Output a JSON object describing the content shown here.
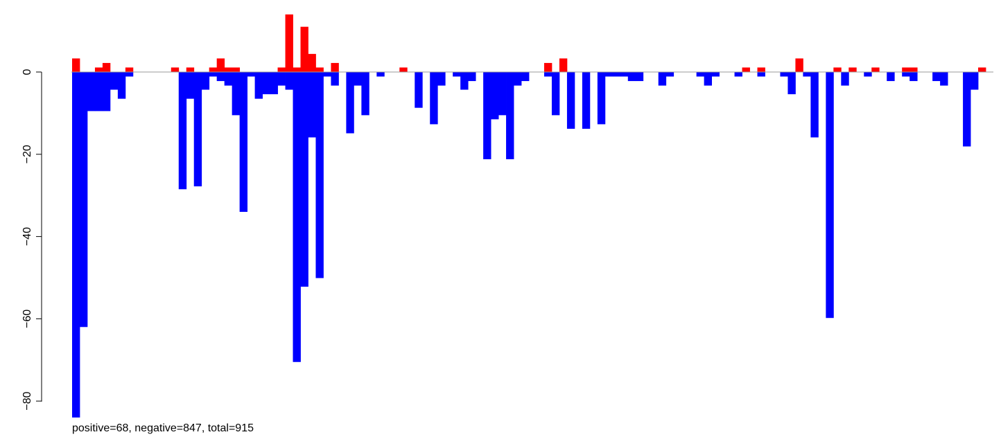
{
  "chart_data": {
    "type": "bar",
    "title": "",
    "xlabel": "",
    "ylabel": "",
    "ylim": [
      -84,
      14
    ],
    "yticks": [
      0,
      -20,
      -40,
      -60,
      -80
    ],
    "ytick_labels": [
      "0",
      "−20",
      "−40",
      "−60",
      "−80"
    ],
    "grid": false,
    "legend": "none",
    "colors": {
      "positive": "#ff0000",
      "negative": "#0000ff",
      "zero_line": "#999999"
    },
    "series": [
      {
        "values": [
          3.3,
          0,
          0,
          1.1,
          2.2,
          0,
          0,
          1.1,
          0,
          0,
          0,
          0,
          0,
          1.1,
          0,
          1.1,
          0,
          0,
          1.1,
          3.3,
          1.1,
          1.1,
          0,
          0,
          0,
          0,
          0,
          1.1,
          14,
          1.1,
          11,
          4.4,
          1.1,
          0,
          2.2,
          0,
          0,
          0,
          0,
          0,
          0,
          0,
          0,
          1.1,
          0,
          0,
          0,
          0,
          0,
          0,
          0,
          0,
          0,
          0,
          0,
          0,
          0,
          0,
          0,
          0,
          0,
          0,
          2.2,
          0,
          3.3,
          0,
          0,
          0,
          0,
          0,
          0,
          0,
          0,
          0,
          0,
          0,
          0,
          0,
          0,
          0,
          0,
          0,
          0,
          0,
          0,
          0,
          0,
          0,
          1.1,
          0,
          1.1,
          0,
          0,
          0,
          0,
          3.3,
          0,
          0,
          0,
          0,
          1.1,
          0,
          1.1,
          0,
          0,
          1.1,
          0,
          0,
          0,
          1.1,
          1.1,
          0,
          0,
          0,
          0,
          0,
          0,
          0,
          0,
          1.1,
          0
        ]
      },
      {
        "values": [
          -84,
          -62,
          -9.5,
          -9.5,
          -9.5,
          -4.3,
          -6.5,
          -1.1,
          0,
          0,
          0,
          0,
          0,
          0,
          -28.5,
          -6.5,
          -27.8,
          -4.3,
          -1.1,
          -2.2,
          -3.3,
          -10.5,
          -34,
          -1.1,
          -6.5,
          -5.4,
          -5.4,
          -3.3,
          -4.3,
          -70.5,
          -52.2,
          -15.9,
          -50.1,
          -1.1,
          -3.3,
          0,
          -14.9,
          -3.3,
          -10.5,
          0,
          -1.1,
          0,
          0,
          0,
          0,
          -8.7,
          0,
          -12.7,
          -3.3,
          0,
          -1.1,
          -4.3,
          -2.2,
          0,
          -21.2,
          -11.5,
          -10.5,
          -21.2,
          -3.3,
          -2.2,
          0,
          0,
          -1.1,
          -10.5,
          0,
          -13.8,
          0,
          -13.8,
          0,
          -12.7,
          -1.1,
          -1.1,
          -1.1,
          -2.2,
          -2.2,
          0,
          0,
          -3.3,
          -1.1,
          0,
          0,
          0,
          -1.1,
          -3.3,
          -1.1,
          0,
          0,
          -1.1,
          0,
          0,
          -1.1,
          0,
          0,
          -1.1,
          -5.4,
          0,
          -1.1,
          -15.9,
          0,
          -59.8,
          0,
          -3.3,
          0,
          0,
          -1.1,
          0,
          0,
          -2.2,
          0,
          -1.1,
          -2.2,
          0,
          0,
          -2.2,
          -3.3,
          0,
          0,
          -18.1,
          -4.3
        ]
      }
    ]
  },
  "summary_text": "positive=68, negative=847, total=915"
}
